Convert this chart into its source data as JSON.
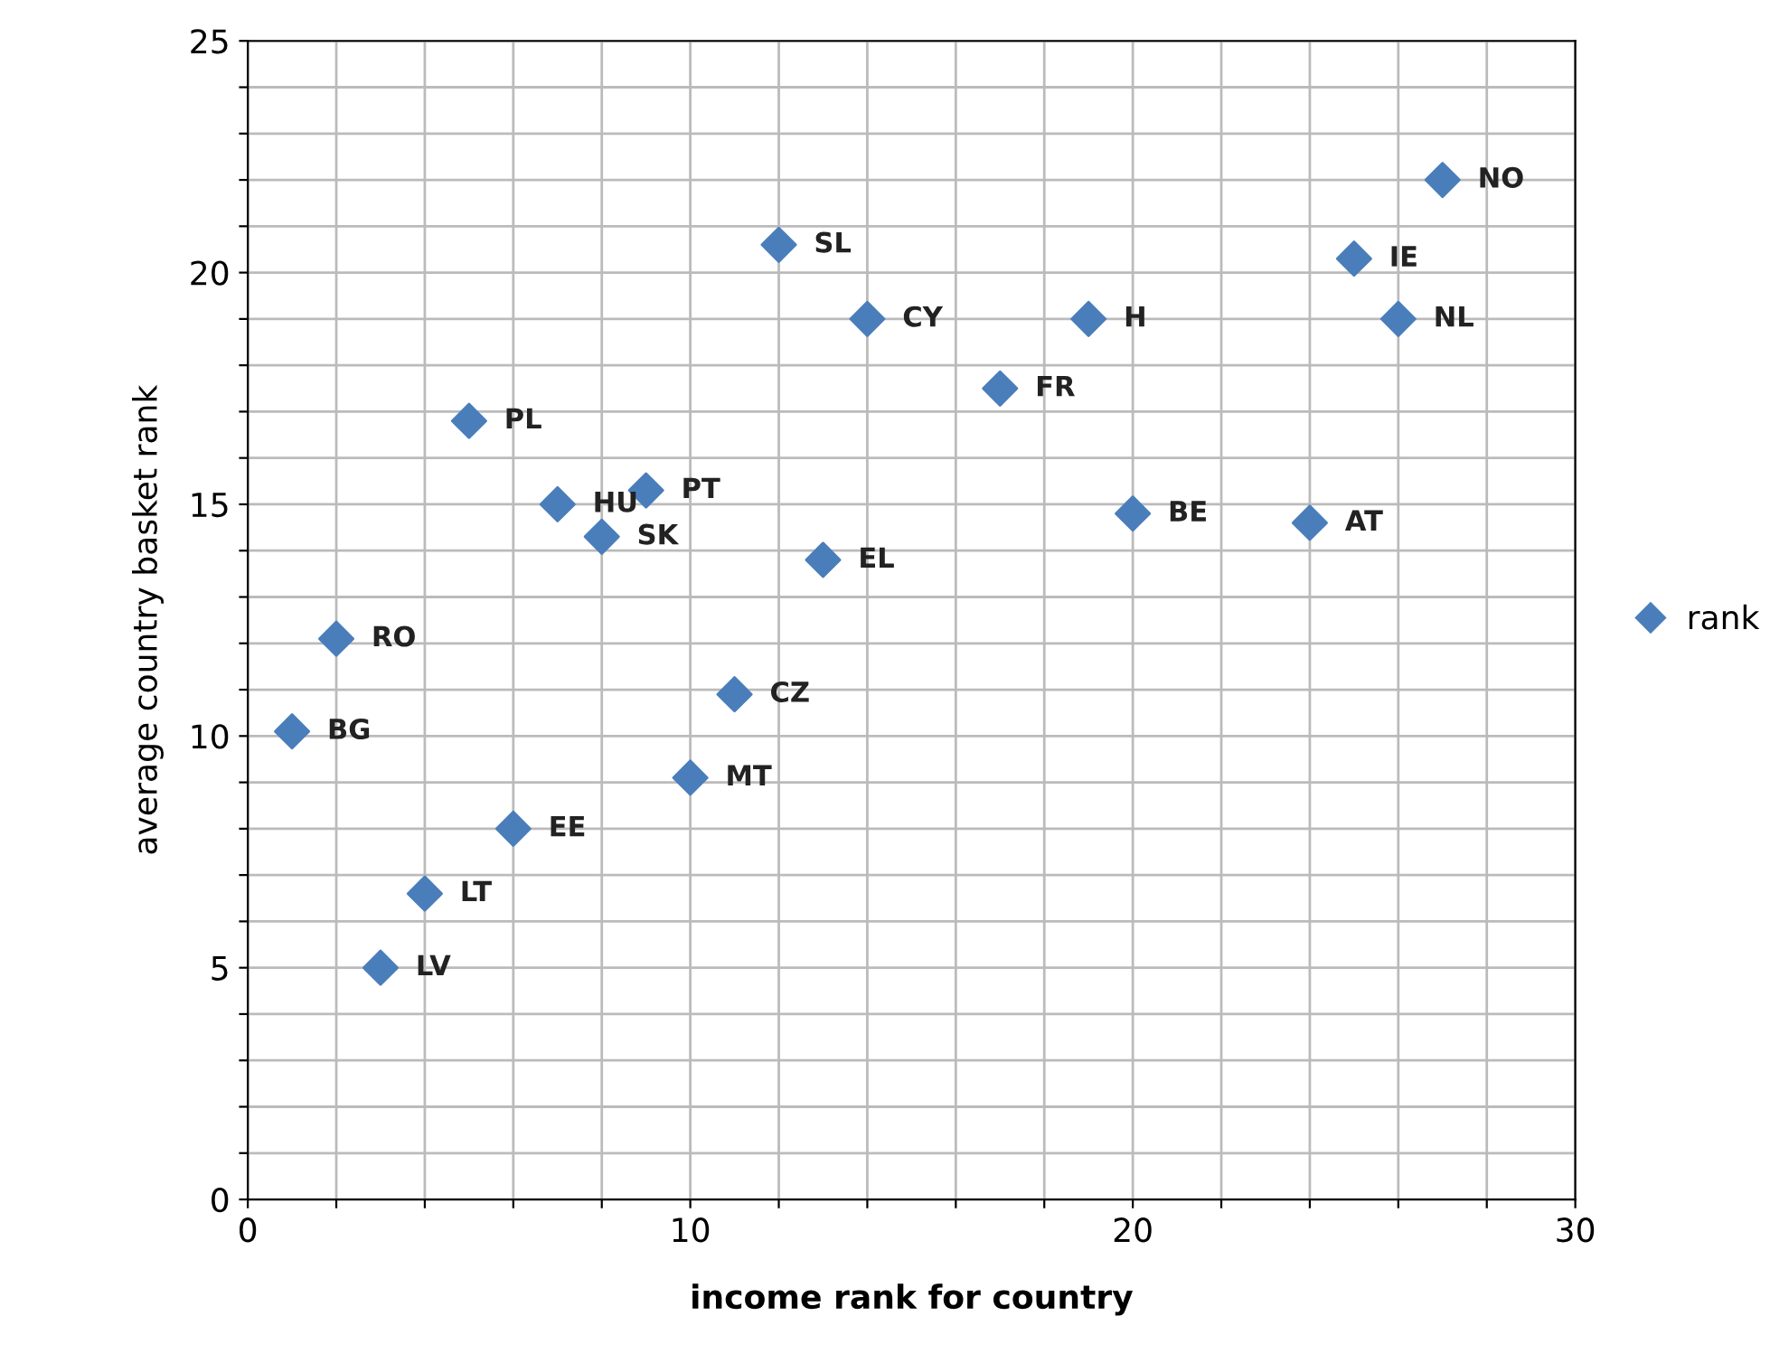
{
  "chart_data": {
    "type": "scatter",
    "xlabel": "income rank for country",
    "ylabel": "average country basket rank",
    "x": [
      27,
      25,
      26,
      12,
      14,
      19,
      17,
      5,
      7,
      9,
      8,
      13,
      20,
      24,
      2,
      1,
      11,
      10,
      6,
      4,
      3
    ],
    "series": [
      {
        "name": "rank",
        "color": "#4a7ebb",
        "values": [
          22,
          20.3,
          19,
          20.6,
          19,
          19,
          17.5,
          16.8,
          15,
          15.3,
          14.3,
          13.8,
          14.8,
          14.6,
          12.1,
          10.1,
          10.9,
          9.1,
          8,
          6.6,
          5
        ]
      }
    ],
    "annotations": [
      {
        "text": "NO",
        "x": 27,
        "y": 22
      },
      {
        "text": "IE",
        "x": 25,
        "y": 20.3
      },
      {
        "text": "NL",
        "x": 26,
        "y": 19
      },
      {
        "text": "SL",
        "x": 12,
        "y": 20.6
      },
      {
        "text": "CY",
        "x": 14,
        "y": 19
      },
      {
        "text": "H",
        "x": 19,
        "y": 19
      },
      {
        "text": "FR",
        "x": 17,
        "y": 17.5
      },
      {
        "text": "PL",
        "x": 5,
        "y": 16.8
      },
      {
        "text": "HU",
        "x": 7,
        "y": 15
      },
      {
        "text": "PT",
        "x": 9,
        "y": 15.3
      },
      {
        "text": "SK",
        "x": 8,
        "y": 14.3
      },
      {
        "text": "EL",
        "x": 13,
        "y": 13.8
      },
      {
        "text": "BE",
        "x": 20,
        "y": 14.8
      },
      {
        "text": "AT",
        "x": 24,
        "y": 14.6
      },
      {
        "text": "RO",
        "x": 2,
        "y": 12.1
      },
      {
        "text": "BG",
        "x": 1,
        "y": 10.1
      },
      {
        "text": "CZ",
        "x": 11,
        "y": 10.9
      },
      {
        "text": "MT",
        "x": 10,
        "y": 9.1
      },
      {
        "text": "EE",
        "x": 6,
        "y": 8
      },
      {
        "text": "LT",
        "x": 4,
        "y": 6.6
      },
      {
        "text": "LV",
        "x": 3,
        "y": 5
      }
    ],
    "xlim": [
      0,
      30
    ],
    "ylim": [
      0,
      25
    ],
    "xticks": [
      0,
      {
        "value": 2,
        "label": null
      },
      {
        "value": 4,
        "label": null
      },
      {
        "value": 6,
        "label": null
      },
      {
        "value": 8,
        "label": null
      },
      10,
      {
        "value": 12,
        "label": null
      },
      {
        "value": 14,
        "label": null
      },
      {
        "value": 16,
        "label": null
      },
      {
        "value": 18,
        "label": null
      },
      20,
      {
        "value": 22,
        "label": null
      },
      {
        "value": 24,
        "label": null
      },
      {
        "value": 26,
        "label": null
      },
      {
        "value": 28,
        "label": null
      },
      30
    ],
    "yticks": [
      0,
      {
        "value": 1,
        "label": null
      },
      {
        "value": 2,
        "label": null
      },
      {
        "value": 3,
        "label": null
      },
      {
        "value": 4,
        "label": null
      },
      5,
      {
        "value": 6,
        "label": null
      },
      {
        "value": 7,
        "label": null
      },
      {
        "value": 8,
        "label": null
      },
      {
        "value": 9,
        "label": null
      },
      10,
      {
        "value": 11,
        "label": null
      },
      {
        "value": 12,
        "label": null
      },
      {
        "value": 13,
        "label": null
      },
      {
        "value": 14,
        "label": null
      },
      15,
      {
        "value": 16,
        "label": null
      },
      {
        "value": 17,
        "label": null
      },
      {
        "value": 18,
        "label": null
      },
      {
        "value": 19,
        "label": null
      },
      20,
      {
        "value": 21,
        "label": null
      },
      {
        "value": 22,
        "label": null
      },
      {
        "value": 23,
        "label": null
      },
      {
        "value": 24,
        "label": null
      },
      25
    ],
    "grid": true,
    "legend": "right",
    "marker": "diamond"
  }
}
